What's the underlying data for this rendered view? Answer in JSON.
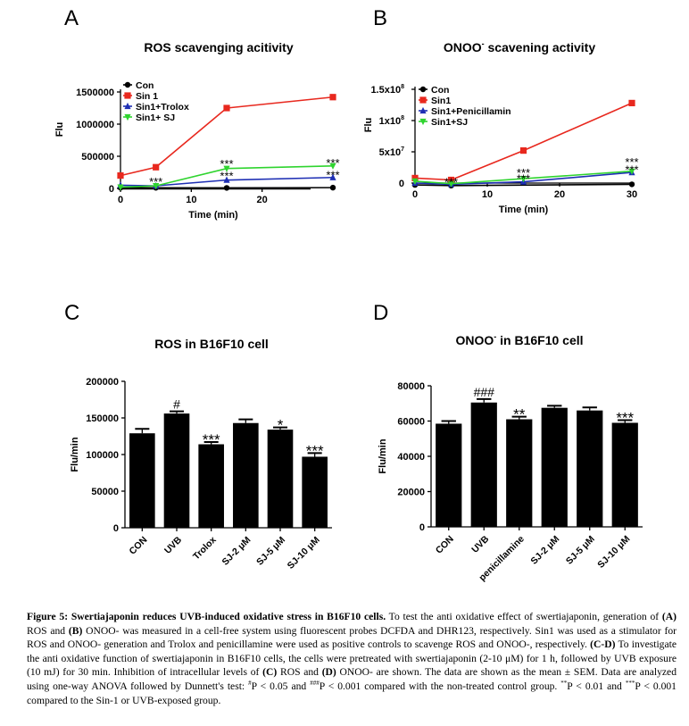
{
  "panel_letters": [
    "A",
    "B",
    "C",
    "D"
  ],
  "caption": {
    "heading": "Figure 5: Swertiajaponin reduces UVB-induced oxidative stress in B16F10 cells.",
    "p1": " To test the anti oxidative effect of swertiajaponin, generation of ",
    "A": "(A)",
    "p2": " ROS and ",
    "B": "(B)",
    "p3": " ONOO- was measured in a cell-free system using fluorescent probes DCFDA and DHR123, respectively. Sin1 was used as a stimulator for ROS and ONOO- generation and Trolox and penicillamine were used as positive controls to scavenge ROS and ONOO-, respectively. ",
    "CD": "(C-D)",
    "p4": " To investigate the anti oxidative function of swertiajaponin in B16F10 cells, the cells were pretreated with swertiajaponin (2-10 μM) for 1 h, followed by UVB exposure (10 mJ) for 30 min. Inhibition of intracellular levels of ",
    "C": "(C)",
    "p5": " ROS and ",
    "D": "(D)",
    "p6": " ONOO- are shown. The data are shown as the mean ± SEM. Data are analyzed using one-way ANOVA followed by Dunnett's test: ",
    "sup1": "#",
    "p7": "P < 0.05 and ",
    "sup2": "###",
    "p8": "P < 0.001 compared with the non-treated control group. ",
    "sup3": "**",
    "p9": "P < 0.01 and ",
    "sup4": "***",
    "p10": "P < 0.001 compared to the Sin-1 or UVB-exposed group."
  },
  "chart_data": [
    {
      "panel": "A",
      "type": "line",
      "title": "ROS scavenging acitivity",
      "xlabel": "Time (min)",
      "ylabel": "Flu",
      "xlim": [
        0,
        30
      ],
      "ylim": [
        0,
        1500000
      ],
      "xticks": [
        0,
        10,
        20
      ],
      "yticks": [
        0,
        500000,
        1000000,
        1500000
      ],
      "ytick_labels": [
        "0",
        "500000",
        "1000000",
        "1500000"
      ],
      "legend": "top-left",
      "series": [
        {
          "name": "Con",
          "color": "#000000",
          "marker": "circle",
          "x": [
            0,
            5,
            15,
            30
          ],
          "y": [
            10000,
            10000,
            8000,
            12000
          ]
        },
        {
          "name": "Sin 1",
          "color": "#e8281e",
          "marker": "square",
          "x": [
            0,
            5,
            15,
            30
          ],
          "y": [
            200000,
            330000,
            1250000,
            1420000
          ]
        },
        {
          "name": "Sin1+Trolox",
          "color": "#1e2fb4",
          "marker": "triangle",
          "x": [
            0,
            5,
            15,
            30
          ],
          "y": [
            50000,
            40000,
            130000,
            170000
          ]
        },
        {
          "name": "Sin1+ SJ",
          "color": "#2fd42f",
          "marker": "triangle-down",
          "x": [
            0,
            5,
            15,
            30
          ],
          "y": [
            20000,
            40000,
            310000,
            350000
          ]
        }
      ],
      "annotations": [
        {
          "text": "***",
          "x": 5,
          "y": 110000
        },
        {
          "text": "***",
          "x": 15,
          "y": 390000
        },
        {
          "text": "***",
          "x": 15,
          "y": 200000
        },
        {
          "text": "***",
          "x": 30,
          "y": 400000
        },
        {
          "text": "***",
          "x": 30,
          "y": 215000
        }
      ]
    },
    {
      "panel": "B",
      "type": "line",
      "title": "ONOO",
      "title_sup": "-",
      "title_rest": " scavening activity",
      "xlabel": "Time (min)",
      "ylabel": "Flu",
      "xlim": [
        0,
        30
      ],
      "ylim": [
        0,
        150000000
      ],
      "xticks": [
        0,
        10,
        20,
        30
      ],
      "yticks": [
        0,
        50000000,
        100000000,
        150000000
      ],
      "ytick_labels": [
        "0",
        "5x10",
        "1x10",
        "1.5x10"
      ],
      "ytick_exps": [
        "",
        "7",
        "8",
        "8"
      ],
      "legend": "top-left",
      "series": [
        {
          "name": "Con",
          "color": "#000000",
          "marker": "circle",
          "x": [
            0,
            5,
            30
          ],
          "y": [
            -3000000,
            -4000000,
            -2000000
          ]
        },
        {
          "name": "Sin1",
          "color": "#e8281e",
          "marker": "square",
          "x": [
            0,
            5,
            15,
            30
          ],
          "y": [
            8000000,
            5000000,
            52000000,
            128000000
          ]
        },
        {
          "name": "Sin1+Penicillamin",
          "color": "#1e2fb4",
          "marker": "triangle",
          "x": [
            0,
            5,
            15,
            30
          ],
          "y": [
            0,
            -2000000,
            2000000,
            17000000
          ]
        },
        {
          "name": "Sin1+SJ",
          "color": "#2fd42f",
          "marker": "triangle-down",
          "x": [
            0,
            5,
            15,
            30
          ],
          "y": [
            3000000,
            -1000000,
            7000000,
            19000000
          ]
        }
      ],
      "annotations": [
        {
          "text": "***",
          "x": 5,
          "y": 2000000
        },
        {
          "text": "***",
          "x": 15,
          "y": 17000000
        },
        {
          "text": "***",
          "x": 15,
          "y": 8000000
        },
        {
          "text": "***",
          "x": 30,
          "y": 34000000
        },
        {
          "text": "***",
          "x": 30,
          "y": 22000000
        }
      ]
    },
    {
      "panel": "C",
      "type": "bar",
      "title": "ROS in B16F10 cell",
      "xlabel": "",
      "ylabel": "Flu/min",
      "ylim": [
        0,
        200000
      ],
      "yticks": [
        0,
        50000,
        100000,
        150000,
        200000
      ],
      "ytick_labels": [
        "0",
        "50000",
        "100000",
        "150000",
        "200000"
      ],
      "categories": [
        "CON",
        "UVB",
        "Trolox",
        "SJ-2 μM",
        "SJ-5 μM",
        "SJ-10 μM"
      ],
      "values": [
        129000,
        156000,
        114000,
        143000,
        134000,
        97000
      ],
      "errors": [
        6000,
        3000,
        3000,
        5000,
        3000,
        5000
      ],
      "marks": [
        "",
        "#",
        "***",
        "",
        "*",
        "***"
      ]
    },
    {
      "panel": "D",
      "type": "bar",
      "title": "ONOO",
      "title_sup": "-",
      "title_rest": " in B16F10 cell",
      "xlabel": "",
      "ylabel": "Flu/min",
      "ylim": [
        0,
        80000
      ],
      "yticks": [
        0,
        20000,
        40000,
        60000,
        80000
      ],
      "ytick_labels": [
        "0",
        "20000",
        "40000",
        "60000",
        "80000"
      ],
      "categories": [
        "CON",
        "UVB",
        "penicillamine",
        "SJ-2 μM",
        "SJ-5 μM",
        "SJ-10 μM"
      ],
      "values": [
        58500,
        70500,
        61000,
        67500,
        66000,
        59000
      ],
      "errors": [
        1500,
        2000,
        1500,
        1200,
        1700,
        1500
      ],
      "marks": [
        "",
        "###",
        "**",
        "",
        "",
        "***"
      ]
    }
  ]
}
